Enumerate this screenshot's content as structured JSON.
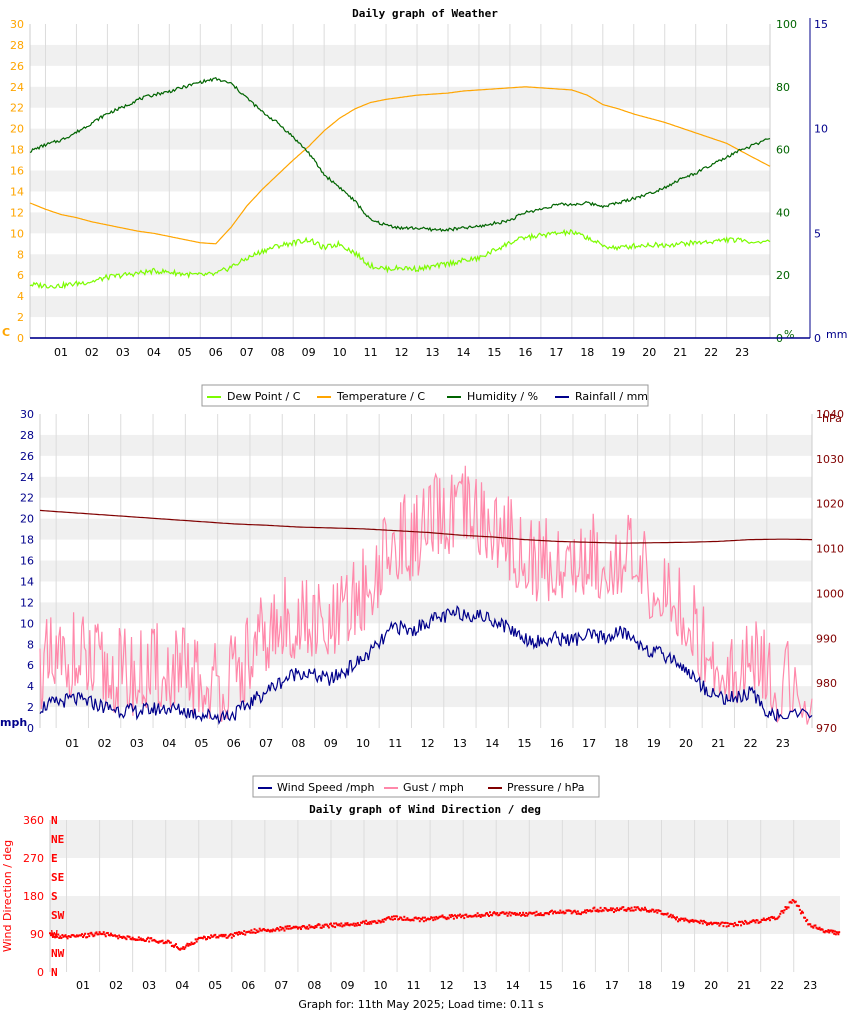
{
  "footer": "Graph for: 11th May 2025; Load time: 0.11 s",
  "chart_data": [
    {
      "type": "line",
      "title": "Daily graph of Weather",
      "x_ticks": [
        "01",
        "02",
        "03",
        "04",
        "05",
        "06",
        "07",
        "08",
        "09",
        "10",
        "11",
        "12",
        "13",
        "14",
        "15",
        "16",
        "17",
        "18",
        "19",
        "20",
        "21",
        "22",
        "23"
      ],
      "xlim": [
        0,
        23.9
      ],
      "axes": {
        "left": {
          "label": "C",
          "ylim": [
            0,
            30
          ],
          "ticks": [
            0,
            2,
            4,
            6,
            8,
            10,
            12,
            14,
            16,
            18,
            20,
            22,
            24,
            26,
            28,
            30
          ],
          "color": "#ffa500"
        },
        "right1": {
          "label": "%",
          "ylim": [
            0,
            100
          ],
          "ticks": [
            0,
            20,
            40,
            60,
            80,
            100
          ],
          "color": "#006400"
        },
        "right2": {
          "label": "mm",
          "ylim": [
            0,
            15
          ],
          "ticks": [
            0,
            5,
            10,
            15
          ],
          "color": "#00008b"
        }
      },
      "series": [
        {
          "name": "Dew Point / C",
          "color": "#7cfc00",
          "axis": "left",
          "x": [
            0,
            0.5,
            1,
            1.5,
            2,
            2.5,
            3,
            3.5,
            4,
            4.5,
            5,
            5.5,
            6,
            6.5,
            7,
            7.5,
            8,
            8.5,
            9,
            9.5,
            10,
            10.5,
            11,
            11.5,
            12,
            12.5,
            13,
            13.5,
            14,
            14.5,
            15,
            15.5,
            16,
            16.5,
            17,
            17.5,
            18,
            18.5,
            19,
            19.5,
            20,
            20.5,
            21,
            21.5,
            22,
            22.5,
            23,
            23.9
          ],
          "y": [
            5.1,
            5.0,
            5.0,
            5.2,
            5.4,
            5.8,
            6.0,
            6.2,
            6.4,
            6.3,
            6.1,
            6.0,
            6.1,
            6.8,
            7.6,
            8.3,
            8.8,
            9.1,
            9.4,
            8.6,
            9.0,
            8.1,
            6.9,
            6.6,
            6.7,
            6.6,
            6.8,
            7.1,
            7.4,
            7.6,
            8.4,
            9.1,
            9.6,
            9.8,
            10.0,
            10.1,
            9.6,
            8.8,
            8.6,
            8.8,
            8.9,
            8.9,
            9.0,
            9.1,
            9.2,
            9.4,
            9.3,
            9.2
          ]
        },
        {
          "name": "Temperature / C",
          "color": "#ffa500",
          "axis": "left",
          "x": [
            0,
            0.5,
            1,
            1.5,
            2,
            2.5,
            3,
            3.5,
            4,
            4.5,
            5,
            5.5,
            6,
            6.5,
            7,
            7.5,
            8,
            8.5,
            9,
            9.5,
            10,
            10.5,
            11,
            11.5,
            12,
            12.5,
            13,
            13.5,
            14,
            14.5,
            15,
            15.5,
            16,
            16.5,
            17,
            17.5,
            18,
            18.5,
            19,
            19.5,
            20,
            20.5,
            21,
            21.5,
            22,
            22.5,
            23,
            23.9
          ],
          "y": [
            12.9,
            12.3,
            11.8,
            11.5,
            11.1,
            10.8,
            10.5,
            10.2,
            10.0,
            9.7,
            9.4,
            9.1,
            9.0,
            10.6,
            12.6,
            14.2,
            15.6,
            17.0,
            18.3,
            19.8,
            21.0,
            21.9,
            22.5,
            22.8,
            23.0,
            23.2,
            23.3,
            23.4,
            23.6,
            23.7,
            23.8,
            23.9,
            24.0,
            23.9,
            23.8,
            23.7,
            23.2,
            22.3,
            21.9,
            21.4,
            21.0,
            20.6,
            20.1,
            19.6,
            19.1,
            18.6,
            17.8,
            16.4
          ]
        },
        {
          "name": "Humidity / %",
          "color": "#006400",
          "axis": "right1",
          "x": [
            0,
            0.5,
            1,
            1.5,
            2,
            2.5,
            3,
            3.5,
            4,
            4.5,
            5,
            5.5,
            6,
            6.5,
            7,
            7.5,
            8,
            8.5,
            9,
            9.5,
            10,
            10.5,
            11,
            11.5,
            12,
            12.5,
            13,
            13.5,
            14,
            14.5,
            15,
            15.5,
            16,
            16.5,
            17,
            17.5,
            18,
            18.5,
            19,
            19.5,
            20,
            20.5,
            21,
            21.5,
            22,
            22.5,
            23,
            23.9
          ],
          "y": [
            59.5,
            61.5,
            63.0,
            65.5,
            68.5,
            71.5,
            73.5,
            76.0,
            77.5,
            78.5,
            80.0,
            81.5,
            82.5,
            81.0,
            76.5,
            72.0,
            68.5,
            64.0,
            59.0,
            52.0,
            48.0,
            43.5,
            37.5,
            36.0,
            35.0,
            35.0,
            34.5,
            34.5,
            35.0,
            35.5,
            36.5,
            37.5,
            40.0,
            41.0,
            42.5,
            42.5,
            43.0,
            42.0,
            43.0,
            44.5,
            46.0,
            48.0,
            50.5,
            52.5,
            55.0,
            57.5,
            60.0,
            63.5
          ]
        },
        {
          "name": "Rainfall / mm",
          "color": "#00008b",
          "axis": "right2",
          "x": [
            0,
            23.9
          ],
          "y": [
            0,
            0
          ]
        }
      ]
    },
    {
      "type": "line",
      "title": "",
      "x_ticks": [
        "01",
        "02",
        "03",
        "04",
        "05",
        "06",
        "07",
        "08",
        "09",
        "10",
        "11",
        "12",
        "13",
        "14",
        "15",
        "16",
        "17",
        "18",
        "19",
        "20",
        "21",
        "22",
        "23"
      ],
      "xlim": [
        0,
        23.9
      ],
      "axes": {
        "left": {
          "label": "mph",
          "ylim": [
            0,
            30
          ],
          "ticks": [
            0,
            2,
            4,
            6,
            8,
            10,
            12,
            14,
            16,
            18,
            20,
            22,
            24,
            26,
            28,
            30
          ],
          "color": "#00008b"
        },
        "right": {
          "label": "hPa",
          "ylim": [
            970,
            1040
          ],
          "ticks": [
            970,
            980,
            990,
            1000,
            1010,
            1020,
            1030,
            1040
          ],
          "color": "#800000"
        }
      },
      "series": [
        {
          "name": "Wind Speed /mph",
          "color": "#00008b",
          "axis": "left",
          "x": [
            0,
            0.5,
            1,
            1.5,
            2,
            2.5,
            3,
            3.5,
            4,
            4.5,
            5,
            5.5,
            6,
            6.5,
            7,
            7.5,
            8,
            8.5,
            9,
            9.5,
            10,
            10.5,
            11,
            11.5,
            12,
            12.5,
            13,
            13.5,
            14,
            14.5,
            15,
            15.5,
            16,
            16.5,
            17,
            17.5,
            18,
            18.5,
            19,
            19.5,
            20,
            20.5,
            21,
            21.5,
            22,
            22.5,
            23,
            23.9
          ],
          "y": [
            2.0,
            2.4,
            2.8,
            2.5,
            2.0,
            1.7,
            1.6,
            1.8,
            1.9,
            1.6,
            1.3,
            1.1,
            1.3,
            2.4,
            3.5,
            4.5,
            5.4,
            5.0,
            4.6,
            5.6,
            6.6,
            8.0,
            9.8,
            9.2,
            10.2,
            10.6,
            11.0,
            10.8,
            10.4,
            9.6,
            8.6,
            8.2,
            8.6,
            8.4,
            8.8,
            8.6,
            9.2,
            8.2,
            7.2,
            6.8,
            5.6,
            4.0,
            3.0,
            2.8,
            3.4,
            1.6,
            1.1,
            1.2
          ]
        },
        {
          "name": "Gust / mph",
          "color": "#ff88aa",
          "axis": "left",
          "x": [
            0,
            0.5,
            1,
            1.5,
            2,
            2.5,
            3,
            3.5,
            4,
            4.5,
            5,
            5.5,
            6,
            6.5,
            7,
            7.5,
            8,
            8.5,
            9,
            9.5,
            10,
            10.5,
            11,
            11.5,
            12,
            12.5,
            13,
            13.5,
            14,
            14.5,
            15,
            15.5,
            16,
            16.5,
            17,
            17.5,
            18,
            18.5,
            19,
            19.5,
            20,
            20.5,
            21,
            21.5,
            22,
            22.5,
            23,
            23.9
          ],
          "y": [
            4.2,
            5.0,
            5.6,
            4.8,
            4.0,
            3.8,
            3.6,
            4.0,
            4.2,
            3.8,
            3.2,
            3.0,
            3.4,
            5.4,
            7.4,
            8.6,
            9.2,
            8.6,
            8.0,
            9.8,
            11.6,
            14.0,
            16.8,
            16.2,
            18.0,
            18.6,
            19.2,
            18.8,
            18.0,
            16.6,
            15.0,
            14.4,
            14.6,
            14.8,
            15.2,
            14.6,
            15.4,
            13.8,
            12.2,
            11.4,
            9.6,
            6.8,
            5.2,
            4.6,
            5.6,
            3.2,
            2.6,
            2.8
          ]
        },
        {
          "name": "Pressure / hPa",
          "color": "#800000",
          "axis": "right",
          "x": [
            0,
            1,
            2,
            3,
            4,
            5,
            6,
            7,
            8,
            9,
            10,
            11,
            12,
            13,
            14,
            15,
            16,
            17,
            18,
            19,
            20,
            21,
            22,
            23,
            23.9
          ],
          "y": [
            1018.5,
            1018.0,
            1017.5,
            1017.0,
            1016.5,
            1016.0,
            1015.5,
            1015.2,
            1014.8,
            1014.6,
            1014.4,
            1014.0,
            1013.6,
            1013.0,
            1012.6,
            1012.0,
            1011.6,
            1011.4,
            1011.2,
            1011.3,
            1011.4,
            1011.6,
            1012.0,
            1012.1,
            1012.0
          ]
        }
      ]
    },
    {
      "type": "scatter",
      "title": "Daily graph of Wind Direction / deg",
      "x_ticks": [
        "01",
        "02",
        "03",
        "04",
        "05",
        "06",
        "07",
        "08",
        "09",
        "10",
        "11",
        "12",
        "13",
        "14",
        "15",
        "16",
        "17",
        "18",
        "19",
        "20",
        "21",
        "22",
        "23"
      ],
      "xlim": [
        0,
        23.9
      ],
      "ylabel": "Wind Direction / deg",
      "ylim": [
        0,
        360
      ],
      "y_ticks": [
        0,
        90,
        180,
        270,
        360
      ],
      "compass_labels": [
        "N",
        "NE",
        "E",
        "SE",
        "S",
        "SW",
        "W",
        "NW",
        "N"
      ],
      "series": [
        {
          "name": "",
          "color": "#ff0000",
          "x": [
            0,
            0.5,
            1,
            1.5,
            2,
            2.5,
            3,
            3.5,
            4,
            4.5,
            5,
            5.5,
            6,
            6.5,
            7,
            7.5,
            8,
            8.5,
            9,
            9.5,
            10,
            10.5,
            11,
            11.5,
            12,
            12.5,
            13,
            13.5,
            14,
            14.5,
            15,
            15.5,
            16,
            16.5,
            17,
            17.5,
            18,
            18.5,
            19,
            19.5,
            20,
            20.5,
            21,
            21.5,
            22,
            22.5,
            23,
            23.5,
            23.9
          ],
          "y": [
            88,
            82,
            85,
            92,
            84,
            80,
            76,
            72,
            55,
            78,
            84,
            86,
            95,
            100,
            102,
            106,
            108,
            110,
            112,
            116,
            122,
            128,
            124,
            126,
            130,
            132,
            135,
            138,
            138,
            136,
            140,
            142,
            140,
            148,
            146,
            150,
            148,
            140,
            125,
            118,
            116,
            112,
            116,
            120,
            130,
            170,
            110,
            96,
            90
          ]
        }
      ]
    }
  ],
  "legend1": [
    {
      "label": "Dew Point / C",
      "color": "#7cfc00"
    },
    {
      "label": "Temperature / C",
      "color": "#ffa500"
    },
    {
      "label": "Humidity / %",
      "color": "#006400"
    },
    {
      "label": "Rainfall / mm",
      "color": "#00008b"
    }
  ],
  "legend2": [
    {
      "label": "Wind Speed /mph",
      "color": "#00008b"
    },
    {
      "label": "Gust / mph",
      "color": "#ff88aa"
    },
    {
      "label": "Pressure / hPa",
      "color": "#800000"
    }
  ]
}
